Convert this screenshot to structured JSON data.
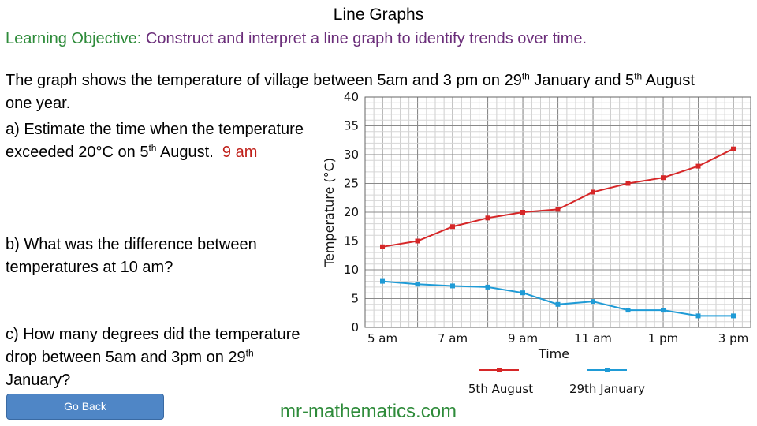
{
  "page": {
    "title": "Line Graphs",
    "objective_label": "Learning Objective:",
    "objective_text": " Construct and interpret a line graph to identify trends over time.",
    "intro_a": "The graph shows the temperature of village between 5am and 3 pm on 29",
    "intro_sup1": "th",
    "intro_b": " January and 5",
    "intro_sup2": "th",
    "intro_c": " August one year.",
    "qa_a": "a) Estimate the time when the temperature exceeded 20°C on 5",
    "qa_sup": "th",
    "qa_b": " August.",
    "qa_answer": "9 am",
    "qb": "b) What was the difference between temperatures at 10 am?",
    "qc_a": "c) How many degrees did the temperature drop between 5am and 3pm on 29",
    "qc_sup": "th",
    "qc_b": " January?",
    "go_back": "Go Back",
    "site": "mr-mathematics.com"
  },
  "chart_data": {
    "type": "line",
    "xlabel": "Time",
    "ylabel": "Temperature (°C)",
    "x_tick_labels": [
      "5 am",
      "7 am",
      "9 am",
      "11 am",
      "1 pm",
      "3 pm"
    ],
    "y_ticks": [
      0,
      5,
      10,
      15,
      20,
      25,
      30,
      35,
      40
    ],
    "xlim_hours": [
      5,
      15
    ],
    "ylim": [
      0,
      40
    ],
    "grid": true,
    "legend_position": "bottom",
    "series": [
      {
        "name": "5th August",
        "color": "#d62728",
        "x_hours": [
          5,
          6,
          7,
          8,
          9,
          10,
          11,
          12,
          13,
          14,
          15
        ],
        "values": [
          14,
          15,
          17.5,
          19,
          20,
          20.5,
          23.5,
          25,
          26,
          28,
          31
        ]
      },
      {
        "name": "29th January",
        "color": "#1f9bd6",
        "x_hours": [
          5,
          6,
          7,
          8,
          9,
          10,
          11,
          12,
          13,
          14,
          15
        ],
        "values": [
          8,
          7.5,
          7.2,
          7,
          6,
          4,
          4.5,
          3,
          3,
          2,
          2
        ]
      }
    ]
  }
}
